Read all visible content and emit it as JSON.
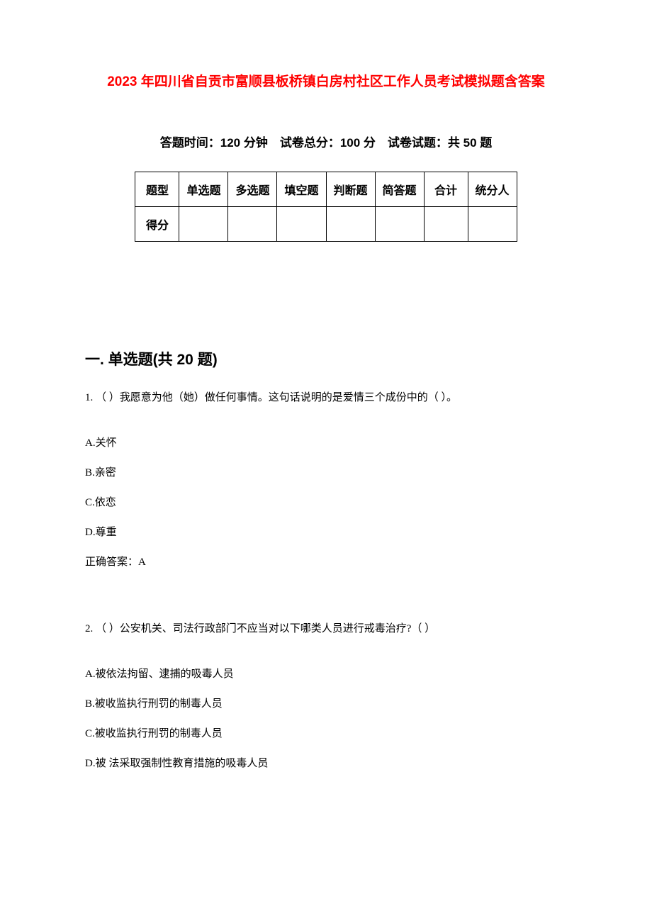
{
  "title": "2023 年四川省自贡市富顺县板桥镇白房村社区工作人员考试模拟题含答案",
  "title_color": "#ff0000",
  "background_color": "#ffffff",
  "text_color": "#000000",
  "exam_info": "答题时间：120 分钟　试卷总分：100 分　试卷试题：共 50 题",
  "score_table": {
    "headers": [
      "题型",
      "单选题",
      "多选题",
      "填空题",
      "判断题",
      "简答题",
      "合计",
      "统分人"
    ],
    "row_label": "得分"
  },
  "section_heading": "一. 单选题(共 20 题)",
  "questions": [
    {
      "number": "1.",
      "text": "（ ）我愿意为他（她）做任何事情。这句话说明的是爱情三个成份中的（ ）。",
      "options": [
        {
          "label": "A.",
          "text": "关怀"
        },
        {
          "label": "B.",
          "text": "亲密"
        },
        {
          "label": "C.",
          "text": "依恋"
        },
        {
          "label": "D.",
          "text": "尊重"
        }
      ],
      "answer_label": "正确答案：",
      "answer_value": "A"
    },
    {
      "number": "2.",
      "text": "（ ）公安机关、司法行政部门不应当对以下哪类人员进行戒毒治疗?（ ）",
      "options": [
        {
          "label": "A.",
          "text": "被依法拘留、逮捕的吸毒人员"
        },
        {
          "label": "B.",
          "text": "被收监执行刑罚的制毒人员"
        },
        {
          "label": "C.",
          "text": "被收监执行刑罚的制毒人员"
        },
        {
          "label": "D.",
          "text": "被 法采取强制性教育措施的吸毒人员"
        }
      ]
    }
  ]
}
